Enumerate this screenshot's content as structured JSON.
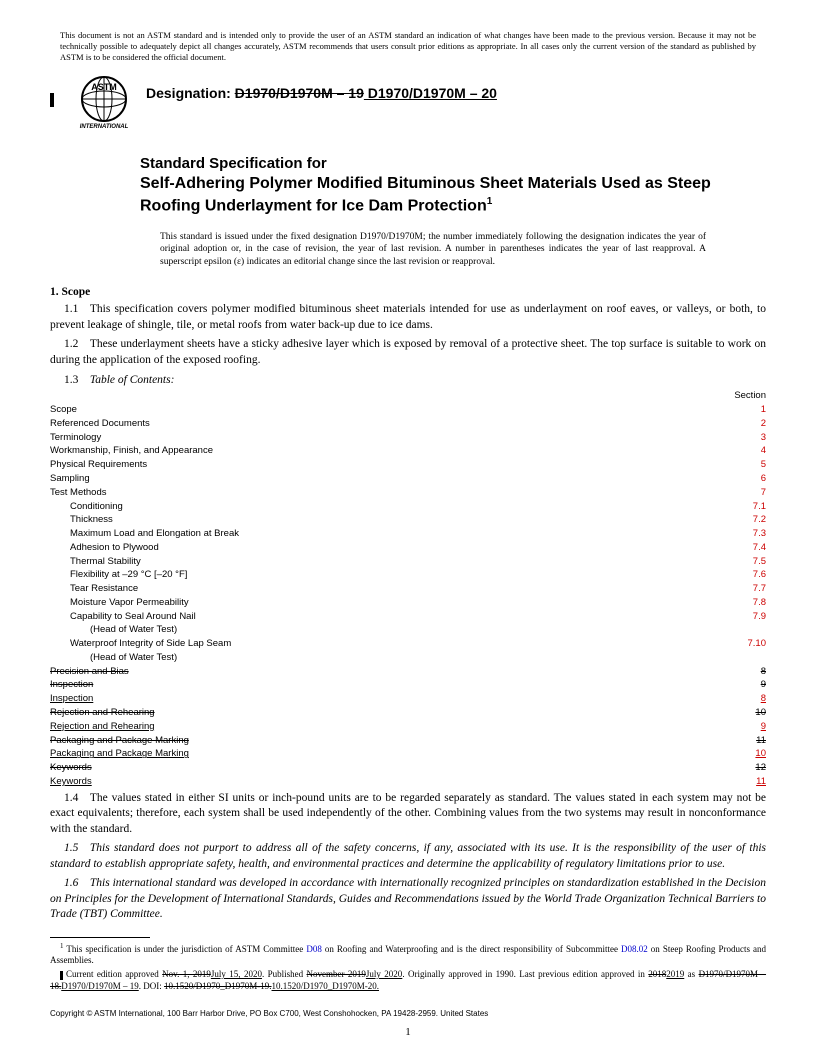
{
  "disclaimer": "This document is not an ASTM standard and is intended only to provide the user of an ASTM standard an indication of what changes have been made to the previous version. Because it may not be technically possible to adequately depict all changes accurately, ASTM recommends that users consult prior editions as appropriate. In all cases only the current version of the standard as published by ASTM is to be considered the official document.",
  "designation_label": "Designation: ",
  "designation_old": "D1970/D1970M – 19",
  "designation_new": " D1970/D1970M – 20",
  "title_small": "Standard Specification for",
  "title_big": "Self-Adhering Polymer Modified Bituminous Sheet Materials Used as Steep Roofing Underlayment for Ice Dam Protection",
  "title_sup": "1",
  "issued_note": "This standard is issued under the fixed designation D1970/D1970M; the number immediately following the designation indicates the year of original adoption or, in the case of revision, the year of last revision. A number in parentheses indicates the year of last reapproval. A superscript epsilon (ε) indicates an editorial change since the last revision or reapproval.",
  "scope_head": "1.  Scope",
  "p11": "1.1 This specification covers polymer modified bituminous sheet materials intended for use as underlayment on roof eaves, or valleys, or both, to prevent leakage of shingle, tile, or metal roofs from water back-up due to ice dams.",
  "p12": "1.2 These underlayment sheets have a sticky adhesive layer which is exposed by removal of a protective sheet. The top surface is suitable to work on during the application of the exposed roofing.",
  "p13_label": "1.3 ",
  "p13_ital": "Table of Contents:",
  "toc_section_head": "Section",
  "toc": [
    {
      "label": "Scope",
      "sec": "1",
      "ind": 0
    },
    {
      "label": "Referenced Documents",
      "sec": "2",
      "ind": 0
    },
    {
      "label": "Terminology",
      "sec": "3",
      "ind": 0
    },
    {
      "label": "Workmanship, Finish, and Appearance",
      "sec": "4",
      "ind": 0
    },
    {
      "label": "Physical Requirements",
      "sec": "5",
      "ind": 0
    },
    {
      "label": "Sampling",
      "sec": "6",
      "ind": 0
    },
    {
      "label": "Test Methods",
      "sec": "7",
      "ind": 0
    },
    {
      "label": "Conditioning",
      "sec": "7.1",
      "ind": 1
    },
    {
      "label": "Thickness",
      "sec": "7.2",
      "ind": 1
    },
    {
      "label": "Maximum Load and Elongation at Break",
      "sec": "7.3",
      "ind": 1
    },
    {
      "label": "Adhesion to Plywood",
      "sec": "7.4",
      "ind": 1
    },
    {
      "label": "Thermal Stability",
      "sec": "7.5",
      "ind": 1
    },
    {
      "label": "Flexibility at –29 °C [–20 °F]",
      "sec": "7.6",
      "ind": 1
    },
    {
      "label": "Tear Resistance",
      "sec": "7.7",
      "ind": 1
    },
    {
      "label": "Moisture Vapor Permeability",
      "sec": "7.8",
      "ind": 1
    },
    {
      "label": "Capability to Seal Around Nail",
      "sec": "7.9",
      "ind": 1
    },
    {
      "label": "(Head of Water Test)",
      "sec": "",
      "ind": 2,
      "blk": true
    },
    {
      "label": "Waterproof Integrity of Side Lap Seam",
      "sec": "7.10",
      "ind": 1
    },
    {
      "label": "(Head of Water Test)",
      "sec": "",
      "ind": 2,
      "blk": true
    },
    {
      "label": "Precision and Bias",
      "sec": "8",
      "ind": 0,
      "strike": true,
      "blk": true
    },
    {
      "label": "Inspection",
      "sec": "9",
      "ind": 0,
      "strike": true,
      "blk": true
    },
    {
      "label": "Inspection",
      "sec": "8",
      "ind": 0,
      "under": true
    },
    {
      "label": "Rejection and Rehearing",
      "sec": "10",
      "ind": 0,
      "strike": true,
      "blk": true
    },
    {
      "label": "Rejection and Rehearing",
      "sec": "9",
      "ind": 0,
      "under": true
    },
    {
      "label": "Packaging and Package Marking",
      "sec": "11",
      "ind": 0,
      "strike": true,
      "blk": true
    },
    {
      "label": "Packaging and Package Marking",
      "sec": "10",
      "ind": 0,
      "under": true
    },
    {
      "label": "Keywords",
      "sec": "12",
      "ind": 0,
      "strike": true,
      "blk": true
    },
    {
      "label": "Keywords",
      "sec": "11",
      "ind": 0,
      "under": true
    }
  ],
  "p14": "1.4 The values stated in either SI units or inch-pound units are to be regarded separately as standard. The values stated in each system may not be exact equivalents; therefore, each system shall be used independently of the other. Combining values from the two systems may result in nonconformance with the standard.",
  "p15": "1.5 This standard does not purport to address all of the safety concerns, if any, associated with its use. It is the responsibility of the user of this standard to establish appropriate safety, health, and environmental practices and determine the applicability of regulatory limitations prior to use.",
  "p16": "1.6 This international standard was developed in accordance with internationally recognized principles on standardization established in the Decision on Principles for the Development of International Standards, Guides and Recommendations issued by the World Trade Organization Technical Barriers to Trade (TBT) Committee.",
  "fn1_a": "This specification is under the jurisdiction of ASTM Committee ",
  "fn1_link1": "D08",
  "fn1_b": " on Roofing and Waterproofing and is the direct responsibility of Subcommittee ",
  "fn1_link2": "D08.02",
  "fn1_c": " on Steep Roofing Products and Assemblies.",
  "fn2_a": "Current edition approved ",
  "fn2_old1": "Nov. 1, 2019",
  "fn2_new1": "July 15, 2020",
  "fn2_b": ". Published ",
  "fn2_old2": "November 2019",
  "fn2_new2": "July 2020",
  "fn2_c": ". Originally approved in 1990. Last previous edition approved in ",
  "fn2_old3": "2018",
  "fn2_new3": "2019",
  "fn2_d": " as ",
  "fn2_old4": "D1970/D1970M – 18.",
  "fn2_new4": "D1970/D1970M – 19",
  "fn2_e": ". DOI: ",
  "fn2_old5": "10.1520/D1970_D1970M-19.",
  "fn2_new5": "10.1520/D1970_D1970M-20.",
  "copyright": "Copyright © ASTM International, 100 Barr Harbor Drive, PO Box C700, West Conshohocken, PA 19428-2959. United States",
  "page": "1"
}
